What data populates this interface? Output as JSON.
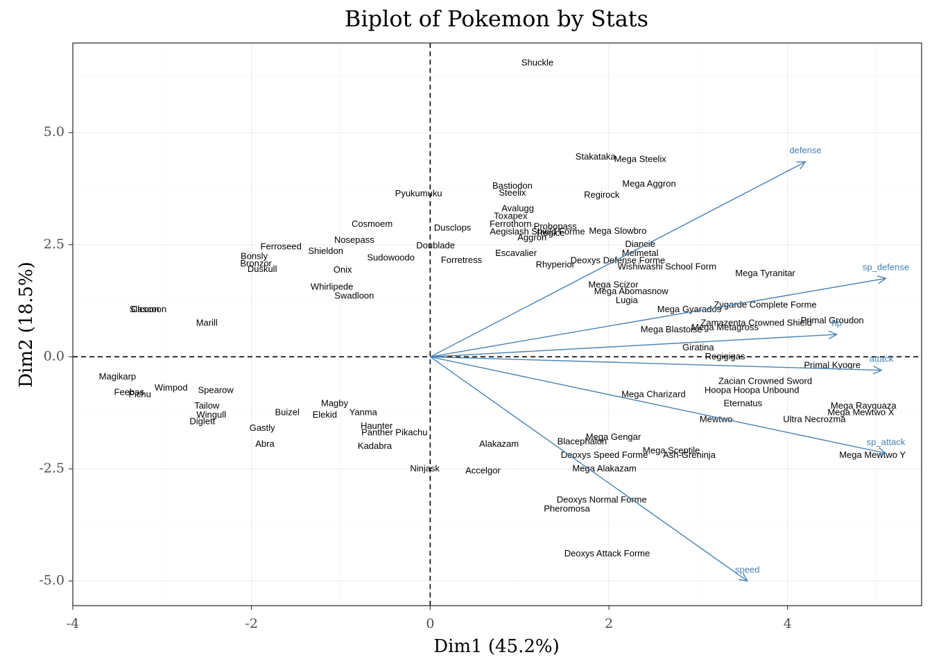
{
  "chart_data": {
    "type": "scatter",
    "title": "Biplot of Pokemon by Stats",
    "xlabel": "Dim1 (45.2%)",
    "ylabel": "Dim2 (18.5%)",
    "xlim": [
      -4.0,
      5.5
    ],
    "ylim": [
      -5.55,
      7.0
    ],
    "x_ticks": [
      -4,
      -2,
      0,
      2,
      4
    ],
    "x_tick_labels": [
      "-4",
      "-2",
      "0",
      "2",
      "4"
    ],
    "y_ticks": [
      -5.0,
      -2.5,
      0.0,
      2.5,
      5.0
    ],
    "y_tick_labels": [
      "-5.0",
      "-2.5",
      "0.0",
      "2.5",
      "5.0"
    ],
    "grid": true,
    "reference_lines": {
      "x": 0,
      "y": 0
    },
    "variable_color": "#4682b4",
    "variables": [
      {
        "name": "defense",
        "x": 4.2,
        "y": 4.35
      },
      {
        "name": "sp_defense",
        "x": 5.1,
        "y": 1.75
      },
      {
        "name": "hp",
        "x": 4.55,
        "y": 0.5
      },
      {
        "name": "attack",
        "x": 5.05,
        "y": -0.3
      },
      {
        "name": "sp_attack",
        "x": 5.1,
        "y": -2.15
      },
      {
        "name": "speed",
        "x": 3.55,
        "y": -5.0
      }
    ],
    "labeled_points": [
      {
        "name": "Shuckle",
        "x": 1.2,
        "y": 6.55
      },
      {
        "name": "Stakataka",
        "x": 1.85,
        "y": 4.45
      },
      {
        "name": "Mega Steelix",
        "x": 2.35,
        "y": 4.4
      },
      {
        "name": "Mega Aggron",
        "x": 2.45,
        "y": 3.85
      },
      {
        "name": "Regirock",
        "x": 1.92,
        "y": 3.6
      },
      {
        "name": "Bastiodon",
        "x": 0.92,
        "y": 3.8
      },
      {
        "name": "Steelix",
        "x": 0.92,
        "y": 3.65
      },
      {
        "name": "Pyukumuku",
        "x": -0.13,
        "y": 3.63
      },
      {
        "name": "Avalugg",
        "x": 0.98,
        "y": 3.3
      },
      {
        "name": "Toxapex",
        "x": 0.9,
        "y": 3.13
      },
      {
        "name": "Cosmoem",
        "x": -0.65,
        "y": 2.95
      },
      {
        "name": "Probopass",
        "x": 1.4,
        "y": 2.9
      },
      {
        "name": "Dusclops",
        "x": 0.25,
        "y": 2.87
      },
      {
        "name": "Aegislash Shield Forme",
        "x": 1.2,
        "y": 2.78
      },
      {
        "name": "Mega Slowbro",
        "x": 2.1,
        "y": 2.8
      },
      {
        "name": "Nosepass",
        "x": -0.85,
        "y": 2.6
      },
      {
        "name": "Aggron",
        "x": 1.14,
        "y": 2.65
      },
      {
        "name": "Ferroseed",
        "x": -1.67,
        "y": 2.45
      },
      {
        "name": "Shieldon",
        "x": -1.17,
        "y": 2.35
      },
      {
        "name": "Doublade",
        "x": 0.06,
        "y": 2.47
      },
      {
        "name": "Diancie",
        "x": 2.35,
        "y": 2.5
      },
      {
        "name": "Bonsly",
        "x": -1.97,
        "y": 2.23
      },
      {
        "name": "Sudowoodo",
        "x": -0.44,
        "y": 2.2
      },
      {
        "name": "Melmetal",
        "x": 2.35,
        "y": 2.3
      },
      {
        "name": "Escavalier",
        "x": 0.96,
        "y": 2.3
      },
      {
        "name": "Deoxys Defense Forme",
        "x": 2.1,
        "y": 2.14
      },
      {
        "name": "Bronzor",
        "x": -1.95,
        "y": 2.07
      },
      {
        "name": "Forretress",
        "x": 0.35,
        "y": 2.15
      },
      {
        "name": "Rhyperior",
        "x": 1.4,
        "y": 2.05
      },
      {
        "name": "Wishiwashi School Form",
        "x": 2.65,
        "y": 2.0
      },
      {
        "name": "Duskull",
        "x": -1.88,
        "y": 1.95
      },
      {
        "name": "Onix",
        "x": -0.98,
        "y": 1.93
      },
      {
        "name": "Mega Tyranitar",
        "x": 3.75,
        "y": 1.85
      },
      {
        "name": "Mega Scizor",
        "x": 2.05,
        "y": 1.6
      },
      {
        "name": "Mega Abomasnow",
        "x": 2.25,
        "y": 1.45
      },
      {
        "name": "Zygarde Complete Forme",
        "x": 3.75,
        "y": 1.15
      },
      {
        "name": "Mega Gyarados",
        "x": 2.9,
        "y": 1.05
      },
      {
        "name": "Primal Groudon",
        "x": 4.5,
        "y": 0.8
      },
      {
        "name": "Zamazenta Crowned Shield",
        "x": 3.65,
        "y": 0.75
      },
      {
        "name": "Mega Metagross",
        "x": 3.3,
        "y": 0.65
      },
      {
        "name": "Mega Blastoise",
        "x": 2.7,
        "y": 0.6
      },
      {
        "name": "Giratina",
        "x": 3.0,
        "y": 0.2
      },
      {
        "name": "Primal Kyogre",
        "x": 4.5,
        "y": -0.2
      },
      {
        "name": "Zacian Crowned Sword",
        "x": 3.75,
        "y": -0.55
      },
      {
        "name": "Hoopa Hoopa Unbound",
        "x": 3.6,
        "y": -0.75
      },
      {
        "name": "Eternatus",
        "x": 3.5,
        "y": -1.05
      },
      {
        "name": "Mega Rayquaza",
        "x": 4.85,
        "y": -1.1
      },
      {
        "name": "Mega Mewtwo X",
        "x": 4.82,
        "y": -1.25
      },
      {
        "name": "Mewtwo",
        "x": 3.2,
        "y": -1.4
      },
      {
        "name": "Ultra Necrozma",
        "x": 4.3,
        "y": -1.4
      },
      {
        "name": "Mega Mewtwo Y",
        "x": 4.95,
        "y": -2.2
      },
      {
        "name": "Mega Sceptile",
        "x": 2.7,
        "y": -2.1
      },
      {
        "name": "Ash-Greninja",
        "x": 2.9,
        "y": -2.2
      },
      {
        "name": "Deoxys Speed Forme",
        "x": 1.95,
        "y": -2.2
      },
      {
        "name": "Mega Alakazam",
        "x": 1.95,
        "y": -2.5
      },
      {
        "name": "Mega Gengar",
        "x": 2.05,
        "y": -1.8
      },
      {
        "name": "Blacephalon",
        "x": 1.7,
        "y": -1.9
      },
      {
        "name": "Alakazam",
        "x": 0.77,
        "y": -1.95
      },
      {
        "name": "Kadabra",
        "x": -0.62,
        "y": -2.0
      },
      {
        "name": "Ninjask",
        "x": -0.06,
        "y": -2.5
      },
      {
        "name": "Accelgor",
        "x": 0.59,
        "y": -2.55
      },
      {
        "name": "Deoxys Normal Forme",
        "x": 1.92,
        "y": -3.2
      },
      {
        "name": "Pheromosa",
        "x": 1.53,
        "y": -3.4
      },
      {
        "name": "Deoxys Attack Forme",
        "x": 1.98,
        "y": -4.4
      },
      {
        "name": "Gastly",
        "x": -1.88,
        "y": -1.6
      },
      {
        "name": "Abra",
        "x": -1.85,
        "y": -1.95
      },
      {
        "name": "Diglett",
        "x": -2.55,
        "y": -1.45
      },
      {
        "name": "Magikarp",
        "x": -3.5,
        "y": -0.45
      },
      {
        "name": "Feebas",
        "x": -3.37,
        "y": -0.8
      },
      {
        "name": "Pichu",
        "x": -3.25,
        "y": -0.85
      },
      {
        "name": "Wimpod",
        "x": -2.9,
        "y": -0.7
      },
      {
        "name": "Cascoon",
        "x": -3.15,
        "y": 1.05
      },
      {
        "name": "Silcoon",
        "x": -3.2,
        "y": 1.05
      },
      {
        "name": "Ferrothorn",
        "x": 0.9,
        "y": 2.95
      },
      {
        "name": "Regice",
        "x": 1.35,
        "y": 2.75
      },
      {
        "name": "Magby",
        "x": -1.07,
        "y": -1.05
      },
      {
        "name": "Elekid",
        "x": -1.18,
        "y": -1.3
      },
      {
        "name": "Haunter",
        "x": -0.6,
        "y": -1.55
      },
      {
        "name": "Panther Pikachu",
        "x": -0.4,
        "y": -1.7
      },
      {
        "name": "Whirlipede",
        "x": -1.1,
        "y": 1.55
      },
      {
        "name": "Marill",
        "x": -2.5,
        "y": 0.75
      },
      {
        "name": "Swadloon",
        "x": -0.85,
        "y": 1.35
      },
      {
        "name": "Yanma",
        "x": -0.75,
        "y": -1.25
      },
      {
        "name": "Tailow",
        "x": -2.5,
        "y": -1.1
      },
      {
        "name": "Wingull",
        "x": -2.45,
        "y": -1.3
      },
      {
        "name": "Spearow",
        "x": -2.4,
        "y": -0.75
      },
      {
        "name": "Buizel",
        "x": -1.6,
        "y": -1.25
      },
      {
        "name": "Mega Charizard",
        "x": 2.5,
        "y": -0.85
      },
      {
        "name": "Lugia",
        "x": 2.2,
        "y": 1.25
      },
      {
        "name": "Regigigas",
        "x": 3.3,
        "y": 0.0
      }
    ]
  }
}
